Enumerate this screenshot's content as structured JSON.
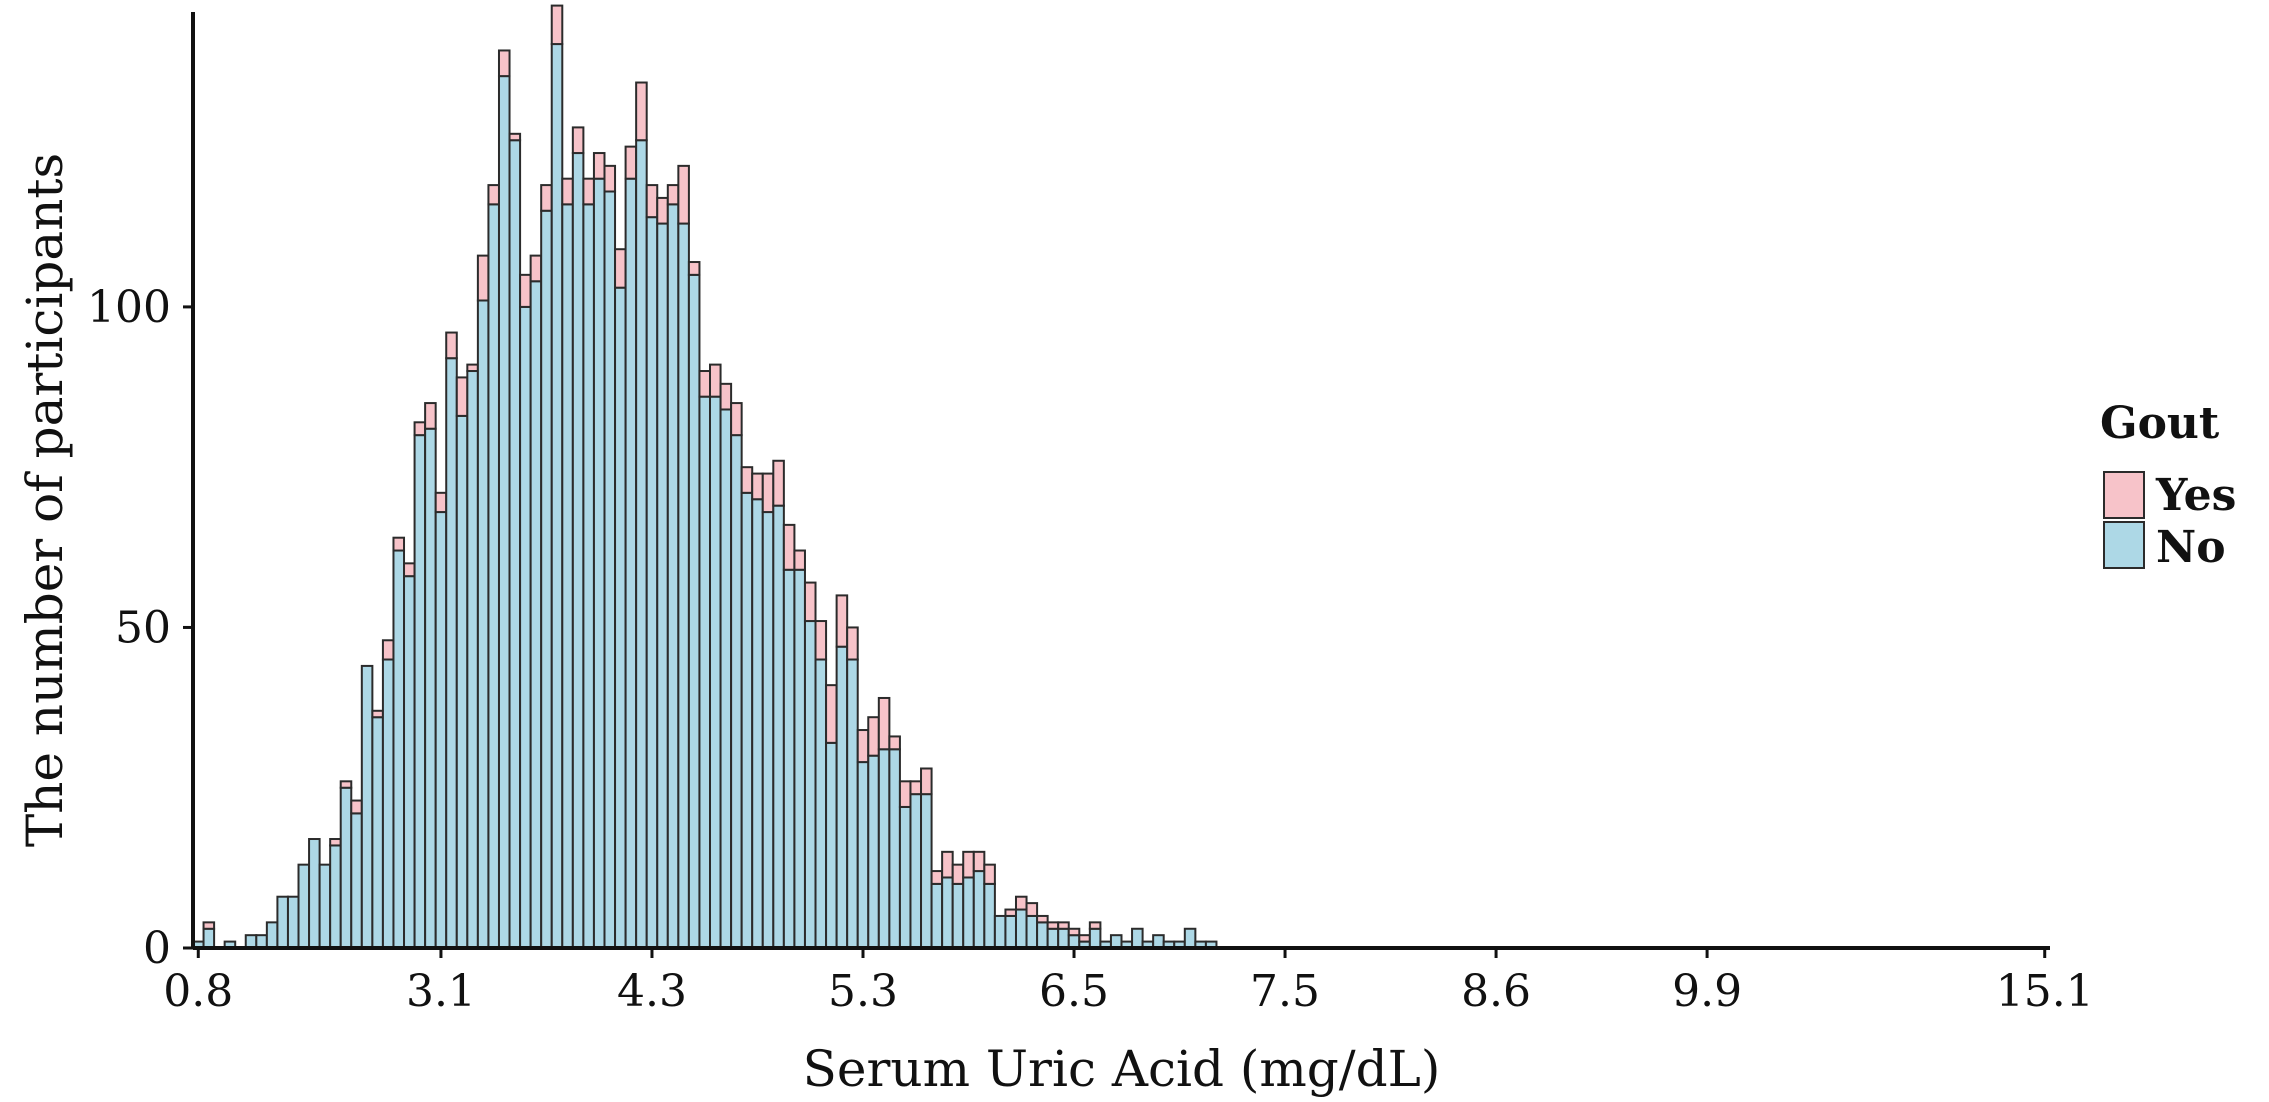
{
  "chart_data": {
    "type": "bar",
    "stacked": true,
    "xlabel": "Serum Uric Acid (mg/dL)",
    "ylabel": "The number of participants",
    "ylim": [
      0,
      146
    ],
    "yticks": [
      0,
      50,
      100
    ],
    "xtick_labels": [
      "0.8",
      "3.1",
      "4.3",
      "5.3",
      "6.5",
      "7.5",
      "8.6",
      "9.9",
      "15.1"
    ],
    "xtick_bins": [
      0,
      23,
      43,
      63,
      83,
      103,
      123,
      143,
      175
    ],
    "legend": {
      "title": "Gout",
      "placement": "right",
      "entries": [
        {
          "label": "Yes",
          "color": "#f7c3c9"
        },
        {
          "label": "No",
          "color": "#add8e6"
        }
      ]
    },
    "colors": {
      "no": "#add8e6",
      "yes": "#f7c3c9",
      "edge": "#2b2b2b"
    },
    "series": [
      {
        "name": "No",
        "values": [
          1,
          3,
          0,
          1,
          0,
          2,
          2,
          4,
          8,
          8,
          13,
          17,
          13,
          16,
          25,
          21,
          44,
          36,
          45,
          62,
          58,
          80,
          81,
          68,
          92,
          83,
          90,
          101,
          116,
          136,
          126,
          100,
          104,
          115,
          141,
          116,
          124,
          116,
          120,
          118,
          103,
          120,
          126,
          114,
          113,
          116,
          113,
          105,
          86,
          86,
          84,
          80,
          71,
          70,
          68,
          69,
          59,
          59,
          51,
          45,
          32,
          47,
          45,
          29,
          30,
          31,
          31,
          22,
          24,
          24,
          10,
          11,
          10,
          11,
          12,
          10,
          5,
          5,
          6,
          5,
          4,
          3,
          3,
          2,
          1,
          3,
          1,
          2,
          1,
          3,
          1,
          2,
          1,
          1,
          3,
          1,
          1,
          0,
          0,
          0,
          0,
          0,
          0,
          0,
          0,
          0,
          0,
          0,
          0,
          0,
          0,
          0,
          0,
          0,
          0,
          0,
          0,
          0,
          0,
          0,
          0,
          0,
          0,
          0,
          0,
          0,
          0,
          0,
          0,
          0,
          0,
          0,
          0,
          0,
          0,
          0,
          0,
          0,
          0,
          0,
          0,
          0,
          0,
          0,
          0,
          0,
          0,
          0,
          0,
          0,
          0,
          0,
          0,
          0,
          0,
          0,
          0,
          0,
          0,
          0,
          0,
          0,
          0,
          0,
          0,
          0,
          0,
          0,
          0,
          0,
          0,
          0,
          0,
          0,
          0,
          0
        ]
      },
      {
        "name": "Yes",
        "values": [
          0,
          1,
          0,
          0,
          0,
          0,
          0,
          0,
          0,
          0,
          0,
          0,
          0,
          1,
          1,
          2,
          0,
          1,
          3,
          2,
          2,
          2,
          4,
          3,
          4,
          6,
          1,
          7,
          3,
          4,
          1,
          5,
          4,
          4,
          6,
          4,
          4,
          4,
          4,
          4,
          6,
          5,
          9,
          5,
          4,
          3,
          9,
          2,
          4,
          5,
          4,
          5,
          4,
          4,
          6,
          7,
          7,
          3,
          6,
          6,
          9,
          8,
          5,
          5,
          6,
          8,
          2,
          4,
          2,
          4,
          2,
          4,
          3,
          4,
          3,
          3,
          0,
          1,
          2,
          2,
          1,
          1,
          1,
          1,
          1,
          1,
          0,
          0,
          0,
          0,
          0,
          0,
          0,
          0,
          0,
          0,
          0,
          0,
          0,
          0,
          0,
          0,
          0,
          0,
          0,
          0,
          0,
          0,
          0,
          0,
          0,
          0,
          0,
          0,
          0,
          0,
          0,
          0,
          0,
          0,
          0,
          0,
          0,
          0,
          0,
          0,
          0,
          0,
          0,
          0,
          0,
          0,
          0,
          0,
          0,
          0,
          0,
          0,
          0,
          0,
          0,
          0,
          0,
          0,
          0,
          0,
          0,
          0,
          0,
          0,
          0,
          0,
          0,
          0,
          0,
          0,
          0,
          0,
          0,
          0,
          0,
          0,
          0,
          0,
          0,
          0,
          0,
          0,
          0,
          0,
          0,
          0,
          0,
          0,
          0,
          0
        ]
      }
    ]
  }
}
